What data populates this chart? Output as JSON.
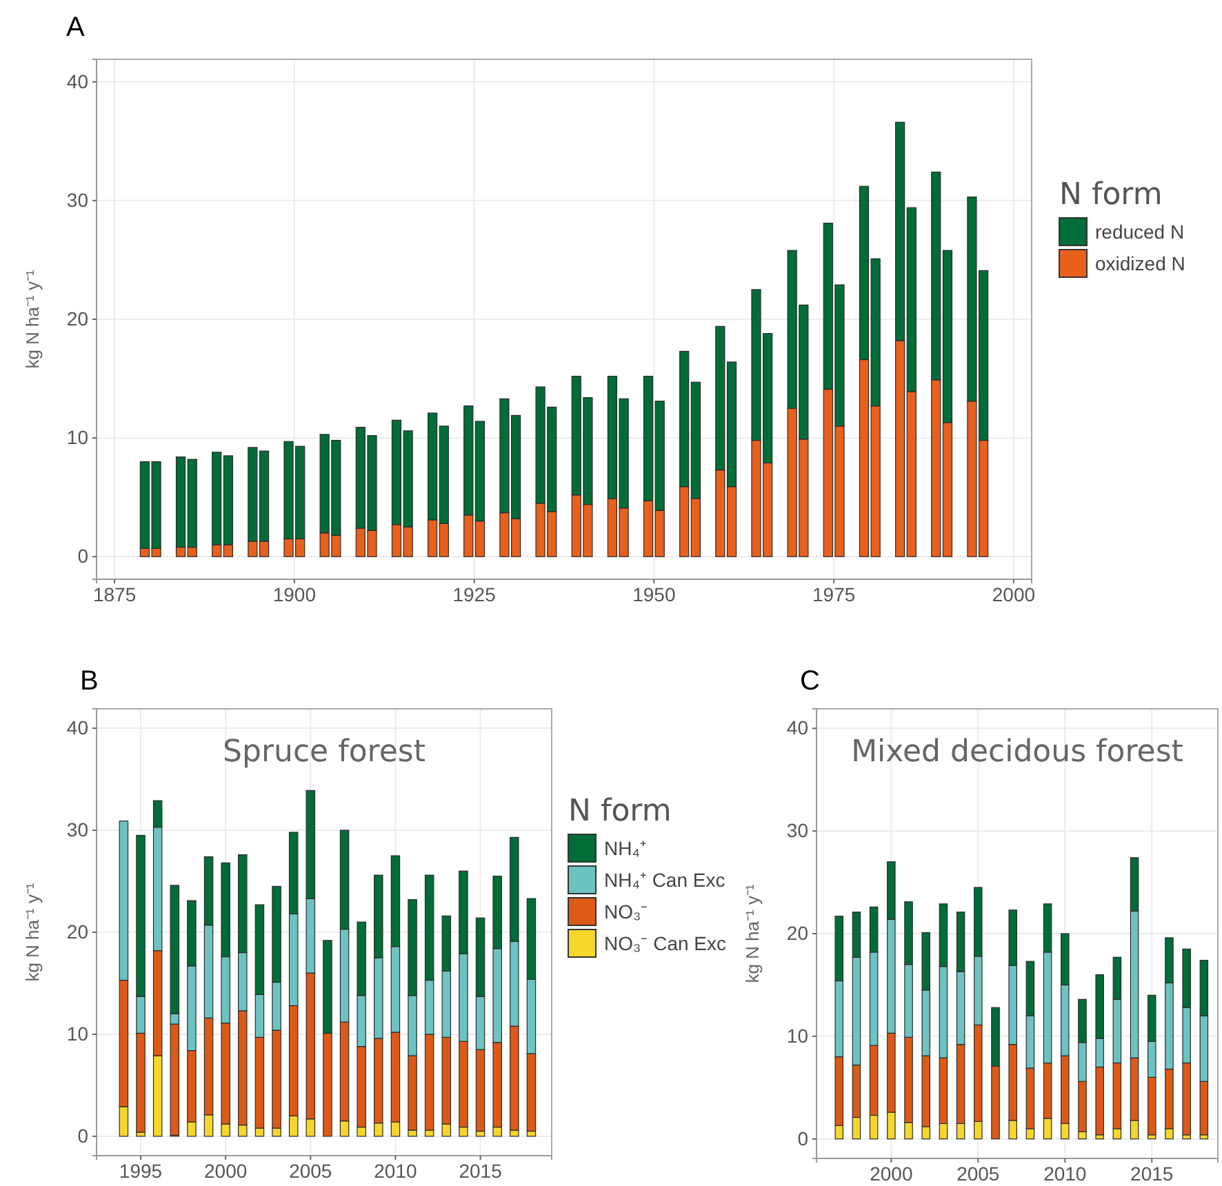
{
  "chart_data": [
    {
      "type": "bar",
      "stacked": true,
      "annotations": [
        "A"
      ],
      "ylabel": "kg N ha⁻¹ y⁻¹",
      "legend_title": "N form",
      "legend": "right",
      "grid": true,
      "x": [
        1879.2,
        1880.8,
        1884.2,
        1885.8,
        1889.2,
        1890.8,
        1894.2,
        1895.8,
        1899.2,
        1900.8,
        1904.2,
        1905.8,
        1909.2,
        1910.8,
        1914.2,
        1915.8,
        1919.2,
        1920.8,
        1924.2,
        1925.8,
        1929.2,
        1930.8,
        1934.2,
        1935.8,
        1939.2,
        1940.8,
        1944.2,
        1945.8,
        1949.2,
        1950.8,
        1954.2,
        1955.8,
        1959.2,
        1960.8,
        1964.2,
        1965.8,
        1969.2,
        1970.8,
        1974.2,
        1975.8,
        1979.2,
        1980.8,
        1984.2,
        1985.8,
        1989.2,
        1990.8,
        1994.2,
        1995.8
      ],
      "xlim": [
        1872.5,
        2002.5
      ],
      "xticks": [
        1875,
        1900,
        1925,
        1950,
        1975,
        2000
      ],
      "ylim": [
        -1.9,
        41.9
      ],
      "yticks": [
        0,
        10,
        20,
        30,
        40
      ],
      "series": [
        {
          "name": "oxidized N",
          "color": "#e8601c",
          "values": [
            0.7,
            0.7,
            0.8,
            0.8,
            1.0,
            1.0,
            1.3,
            1.3,
            1.5,
            1.5,
            2.0,
            1.8,
            2.4,
            2.2,
            2.7,
            2.5,
            3.1,
            2.8,
            3.5,
            3.0,
            3.7,
            3.2,
            4.5,
            3.8,
            5.2,
            4.4,
            4.9,
            4.1,
            4.7,
            3.9,
            5.9,
            4.9,
            7.3,
            5.9,
            9.8,
            7.9,
            12.5,
            9.9,
            14.1,
            11.0,
            16.6,
            12.7,
            18.2,
            13.9,
            14.9,
            11.3,
            13.1,
            9.8
          ]
        },
        {
          "name": "reduced N",
          "color": "#006d38",
          "values": [
            7.3,
            7.3,
            7.6,
            7.4,
            7.8,
            7.5,
            7.9,
            7.6,
            8.2,
            7.8,
            8.3,
            8.0,
            8.5,
            8.0,
            8.8,
            8.1,
            9.0,
            8.2,
            9.2,
            8.4,
            9.6,
            8.7,
            9.8,
            8.8,
            10.0,
            9.0,
            10.3,
            9.2,
            10.5,
            9.2,
            11.4,
            9.8,
            12.1,
            10.5,
            12.7,
            10.9,
            13.3,
            11.3,
            14.0,
            11.9,
            14.6,
            12.4,
            18.4,
            15.5,
            17.5,
            14.5,
            17.2,
            14.3
          ]
        }
      ]
    },
    {
      "type": "bar",
      "stacked": true,
      "title": "Spruce forest",
      "annotations": [
        "B"
      ],
      "ylabel": "kg N ha⁻¹ y⁻¹",
      "legend_title": "N form",
      "legend": "right",
      "grid": true,
      "x": [
        1994,
        1995,
        1996,
        1997,
        1998,
        1999,
        2000,
        2001,
        2002,
        2003,
        2004,
        2005,
        2006,
        2007,
        2008,
        2009,
        2010,
        2011,
        2012,
        2013,
        2014,
        2015,
        2016,
        2017,
        2018
      ],
      "xlim": [
        1992.4,
        2019.2
      ],
      "xticks": [
        1995,
        2000,
        2005,
        2010,
        2015
      ],
      "ylim": [
        -1.9,
        41.9
      ],
      "yticks": [
        0,
        10,
        20,
        30,
        40
      ],
      "series": [
        {
          "name": "NO₃⁻ Can Exc",
          "color": "#f6d62a",
          "values": [
            2.9,
            0.4,
            7.9,
            0.1,
            1.4,
            2.1,
            1.2,
            1.1,
            0.8,
            0.8,
            2.0,
            1.7,
            0,
            1.5,
            0.9,
            1.3,
            1.4,
            0.6,
            0.6,
            1.2,
            0.9,
            0.5,
            0.9,
            0.6,
            0.5
          ]
        },
        {
          "name": "NO₃⁻",
          "color": "#dd5a16",
          "values": [
            12.4,
            9.7,
            10.3,
            10.9,
            7.0,
            9.5,
            9.9,
            11.2,
            8.9,
            9.6,
            10.8,
            14.3,
            10.1,
            9.7,
            7.9,
            8.3,
            8.8,
            7.3,
            9.4,
            8.5,
            8.4,
            8.0,
            8.3,
            10.2,
            7.6
          ]
        },
        {
          "name": "NH₄⁺ Can Exc",
          "color": "#6cc3c1",
          "values": [
            15.6,
            3.6,
            12.1,
            1.0,
            8.3,
            9.1,
            6.5,
            5.7,
            4.2,
            4.7,
            9.0,
            7.3,
            0,
            9.1,
            5.0,
            7.9,
            8.4,
            5.9,
            5.3,
            6.5,
            8.6,
            5.2,
            9.2,
            8.3,
            7.3
          ]
        },
        {
          "name": "NH₄⁺",
          "color": "#006d38",
          "values": [
            0,
            15.8,
            2.6,
            12.6,
            6.4,
            6.7,
            9.2,
            9.6,
            8.8,
            9.4,
            8.0,
            10.6,
            9.1,
            9.7,
            7.2,
            8.1,
            8.9,
            9.4,
            10.3,
            5.4,
            8.1,
            7.7,
            7.1,
            10.2,
            7.9
          ]
        }
      ]
    },
    {
      "type": "bar",
      "stacked": true,
      "title": "Mixed decidous forest",
      "annotations": [
        "C"
      ],
      "ylabel": "kg N ha⁻¹ y⁻¹",
      "grid": true,
      "x": [
        1997,
        1998,
        1999,
        2000,
        2001,
        2002,
        2003,
        2004,
        2005,
        2006,
        2007,
        2008,
        2009,
        2010,
        2011,
        2012,
        2013,
        2014,
        2015,
        2016,
        2017,
        2018
      ],
      "xlim": [
        1995.7,
        2018.8
      ],
      "xticks": [
        2000,
        2005,
        2010,
        2015
      ],
      "ylim": [
        -1.9,
        41.9
      ],
      "yticks": [
        0,
        10,
        20,
        30,
        40
      ],
      "series": [
        {
          "color": "#f6d62a",
          "values": [
            1.3,
            2.1,
            2.3,
            2.6,
            1.6,
            1.2,
            1.5,
            1.5,
            1.7,
            0,
            1.8,
            1.0,
            2.0,
            1.5,
            0.7,
            0.4,
            1.0,
            1.8,
            0.4,
            1.0,
            0.4,
            0.4
          ]
        },
        {
          "color": "#dd5a16",
          "values": [
            6.7,
            5.1,
            6.8,
            7.7,
            8.3,
            6.9,
            6.4,
            7.7,
            9.4,
            7.1,
            7.4,
            5.9,
            5.4,
            6.6,
            4.9,
            6.6,
            6.4,
            6.1,
            5.6,
            5.8,
            7.0,
            5.2
          ]
        },
        {
          "color": "#6cc3c1",
          "values": [
            7.4,
            10.5,
            9.1,
            11.1,
            7.1,
            6.4,
            8.9,
            7.1,
            6.7,
            0,
            7.7,
            5.1,
            10.8,
            6.9,
            3.8,
            2.8,
            6.2,
            14.3,
            3.5,
            8.4,
            5.4,
            6.4
          ]
        },
        {
          "color": "#006d38",
          "values": [
            6.3,
            4.4,
            4.4,
            5.6,
            6.1,
            5.6,
            6.1,
            5.8,
            6.7,
            5.7,
            5.4,
            5.3,
            4.7,
            5.0,
            4.2,
            6.2,
            4.1,
            5.2,
            4.5,
            4.4,
            5.7,
            5.4
          ]
        }
      ]
    }
  ]
}
